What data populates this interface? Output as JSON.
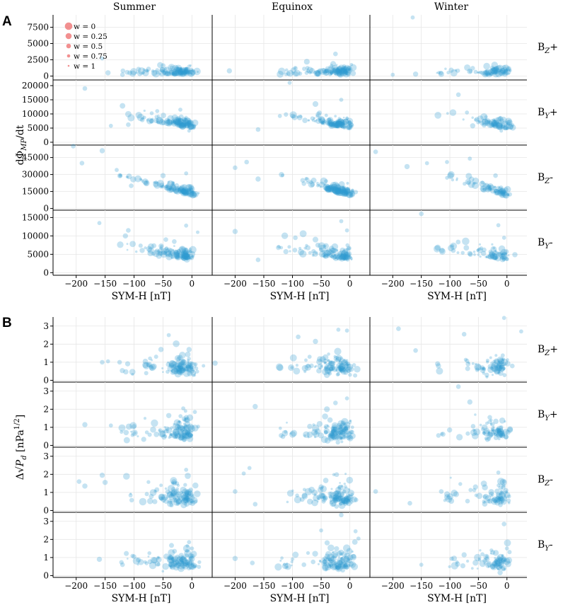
{
  "chart_data": {
    "type": "scatter",
    "marker": "bubble",
    "colors": {
      "points": "#2e9bd0",
      "legend": "#ee6b6b",
      "grid": "#e6e6e6",
      "axis": "#000000"
    },
    "columns": [
      "Summer",
      "Equinox",
      "Winter"
    ],
    "rows": [
      "Bz+",
      "By+",
      "Bz-",
      "By-"
    ],
    "row_label_parts": [
      {
        "base": "B",
        "sub": "Z",
        "suffix": "+"
      },
      {
        "base": "B",
        "sub": "Y",
        "suffix": "+"
      },
      {
        "base": "B",
        "sub": "Z",
        "suffix": "-"
      },
      {
        "base": "B",
        "sub": "Y",
        "suffix": "-"
      }
    ],
    "x_axis": {
      "label": "SYM-H [nT]",
      "ticks": [
        -200,
        -150,
        -100,
        -50,
        0
      ],
      "tick_labels": [
        "−200",
        "−150",
        "−100",
        "−50",
        "0"
      ],
      "range": [
        -240,
        35
      ]
    },
    "legend": {
      "title": "w",
      "entries": [
        {
          "label": "w = 0",
          "w": 0
        },
        {
          "label": "w = 0.25",
          "w": 0.25
        },
        {
          "label": "w = 0.5",
          "w": 0.5
        },
        {
          "label": "w = 0.75",
          "w": 0.75
        },
        {
          "label": "w = 1",
          "w": 1
        }
      ]
    },
    "panels": [
      {
        "id": "A",
        "letter": "A",
        "ylabel": "dΦ_MP/dt",
        "ylabel_parts": {
          "pre": "dΦ",
          "sub": "MP",
          "post": "/dt"
        },
        "rows": [
          {
            "ylim": [
              -600,
              9400
            ],
            "yticks": [
              0,
              2500,
              5000,
              7500
            ],
            "ytick_labels": [
              "0",
              "2500",
              "5000",
              "7500"
            ]
          },
          {
            "ylim": [
              -1000,
              22000
            ],
            "yticks": [
              0,
              5000,
              10000,
              15000,
              20000
            ],
            "ytick_labels": [
              "0",
              "5000",
              "10000",
              "15000",
              "20000"
            ]
          },
          {
            "ylim": [
              -1500,
              56000
            ],
            "yticks": [
              0,
              15000,
              30000,
              45000
            ],
            "ytick_labels": [
              "0",
              "15000",
              "30000",
              "45000"
            ]
          },
          {
            "ylim": [
              -700,
              17000
            ],
            "yticks": [
              0,
              5000,
              10000,
              15000
            ],
            "ytick_labels": [
              "0",
              "5000",
              "10000",
              "15000"
            ]
          }
        ],
        "highlight_points": [
          [
            [
              [
                -155,
                2700,
                0.6
              ],
              [
                -145,
                500,
                0.4
              ],
              [
                -120,
                200,
                0.5
              ],
              [
                -75,
                1100,
                0.5
              ],
              [
                -60,
                900,
                0.6
              ],
              [
                -35,
                1300,
                0.6
              ],
              [
                -5,
                1500,
                0.7
              ]
            ],
            [
              [
                -210,
                800,
                0.4
              ],
              [
                -95,
                1200,
                0.5
              ],
              [
                -75,
                2200,
                0.3
              ],
              [
                -25,
                3400,
                0.5
              ],
              [
                -10,
                1500,
                0.6
              ],
              [
                0,
                900,
                0.7
              ]
            ],
            [
              [
                -165,
                9000,
                0.6
              ],
              [
                -200,
                200,
                0.6
              ],
              [
                -160,
                300,
                0.4
              ],
              [
                -115,
                300,
                0.3
              ],
              [
                -60,
                1200,
                0.5
              ],
              [
                -5,
                1400,
                0.6
              ]
            ]
          ],
          [
            [
              [
                -185,
                19000,
                0.5
              ],
              [
                -140,
                5800,
                0.6
              ],
              [
                -110,
                6200,
                0.5
              ],
              [
                -60,
                11000,
                0.6
              ],
              [
                -20,
                11500,
                0.6
              ],
              [
                -5,
                4000,
                0.7
              ]
            ],
            [
              [
                -105,
                21000,
                0.6
              ],
              [
                -160,
                4500,
                0.5
              ],
              [
                -60,
                13500,
                0.3
              ],
              [
                -15,
                15000,
                0.6
              ],
              [
                -5,
                8500,
                0.7
              ]
            ],
            [
              [
                -85,
                16800,
                0.5
              ],
              [
                -70,
                10500,
                0.6
              ],
              [
                -40,
                6000,
                0.5
              ],
              [
                -60,
                5800,
                0.4
              ],
              [
                -10,
                4000,
                0.7
              ]
            ]
          ],
          [
            [
              [
                -205,
                55000,
                0.5
              ],
              [
                -190,
                40000,
                0.5
              ],
              [
                -155,
                51000,
                0.4
              ],
              [
                -130,
                34000,
                0.6
              ],
              [
                -105,
                20000,
                0.5
              ],
              [
                -50,
                29000,
                0.4
              ],
              [
                -10,
                31000,
                0.6
              ]
            ],
            [
              [
                -200,
                36000,
                0.5
              ],
              [
                -180,
                41000,
                0.5
              ],
              [
                -160,
                26000,
                0.4
              ],
              [
                -80,
                22000,
                0.5
              ],
              [
                -40,
                18000,
                0.4
              ],
              [
                -10,
                15000,
                0.6
              ]
            ],
            [
              [
                -230,
                50000,
                0.5
              ],
              [
                -175,
                37000,
                0.4
              ],
              [
                -140,
                40000,
                0.6
              ],
              [
                -105,
                41000,
                0.6
              ],
              [
                -65,
                44000,
                0.6
              ],
              [
                -20,
                29000,
                0.5
              ]
            ]
          ],
          [
            [
              [
                -160,
                13500,
                0.6
              ],
              [
                -110,
                11500,
                0.5
              ],
              [
                -115,
                10000,
                0.4
              ],
              [
                -45,
                9000,
                0.5
              ],
              [
                -10,
                12800,
                0.6
              ],
              [
                10,
                11000,
                0.7
              ]
            ],
            [
              [
                -200,
                11200,
                0.4
              ],
              [
                -160,
                3500,
                0.5
              ],
              [
                -95,
                9500,
                0.5
              ],
              [
                -60,
                9000,
                0.3
              ],
              [
                -15,
                14000,
                0.6
              ],
              [
                -5,
                11500,
                0.6
              ]
            ],
            [
              [
                -150,
                16000,
                0.5
              ],
              [
                -65,
                5200,
                0.4
              ],
              [
                -40,
                6200,
                0.5
              ],
              [
                -15,
                12900,
                0.6
              ],
              [
                -5,
                9500,
                0.6
              ]
            ]
          ]
        ]
      },
      {
        "id": "B",
        "letter": "B",
        "ylabel": "Δ√P_d [nPa^1/2]",
        "ylabel_parts": {
          "pre": "Δ√",
          "var": "P",
          "sub": "d",
          "unit": "[nPa",
          "sup": "1/2",
          "close": "]"
        },
        "rows": [
          {
            "ylim": [
              -0.1,
              3.5
            ],
            "yticks": [
              0,
              1,
              2,
              3
            ],
            "ytick_labels": [
              "0",
              "1",
              "2",
              "3"
            ]
          },
          {
            "ylim": [
              -0.1,
              3.5
            ],
            "yticks": [
              0,
              1,
              2,
              3
            ],
            "ytick_labels": [
              "0",
              "1",
              "2",
              "3"
            ]
          },
          {
            "ylim": [
              -0.1,
              3.5
            ],
            "yticks": [
              0,
              1,
              2,
              3
            ],
            "ytick_labels": [
              "0",
              "1",
              "2",
              "3"
            ]
          },
          {
            "ylim": [
              -0.1,
              3.5
            ],
            "yticks": [
              0,
              1,
              2,
              3
            ],
            "ytick_labels": [
              "0",
              "1",
              "2",
              "3"
            ]
          }
        ],
        "highlight_points": [
          [
            [
              [
                -155,
                1.0,
                0.5
              ],
              [
                -145,
                1.05,
                0.6
              ],
              [
                -125,
                1.0,
                0.5
              ],
              [
                -40,
                2.5,
                0.6
              ],
              [
                -5,
                1.7,
                0.4
              ],
              [
                -75,
                0.85,
                0.5
              ],
              [
                20,
                0.8,
                0.7
              ]
            ],
            [
              [
                -235,
                0.95,
                0.4
              ],
              [
                -90,
                2.4,
                0.5
              ],
              [
                -60,
                2.15,
                0.4
              ],
              [
                -20,
                2.8,
                0.6
              ],
              [
                -5,
                2.75,
                0.6
              ]
            ],
            [
              [
                -190,
                2.85,
                0.5
              ],
              [
                -160,
                1.65,
                0.5
              ],
              [
                -120,
                0.8,
                0.4
              ],
              [
                -75,
                2.55,
                0.5
              ],
              [
                -5,
                3.45,
                0.6
              ],
              [
                25,
                2.7,
                0.6
              ]
            ]
          ],
          [
            [
              [
                -185,
                1.15,
                0.4
              ],
              [
                -140,
                1.1,
                0.6
              ],
              [
                -100,
                1.05,
                0.5
              ],
              [
                -40,
                1.65,
                0.4
              ],
              [
                -15,
                2.05,
                0.6
              ],
              [
                5,
                1.85,
                0.6
              ]
            ],
            [
              [
                -165,
                2.15,
                0.4
              ],
              [
                -120,
                0.55,
                0.5
              ],
              [
                -70,
                1.05,
                0.4
              ],
              [
                -40,
                2.0,
                0.3
              ],
              [
                -25,
                2.35,
                0.5
              ],
              [
                -5,
                2.6,
                0.6
              ]
            ],
            [
              [
                -85,
                3.25,
                0.5
              ],
              [
                -65,
                2.4,
                0.4
              ],
              [
                -120,
                0.55,
                0.5
              ],
              [
                -30,
                1.55,
                0.5
              ],
              [
                -10,
                1.0,
                0.6
              ]
            ]
          ],
          [
            [
              [
                -195,
                1.6,
                0.5
              ],
              [
                -185,
                1.35,
                0.4
              ],
              [
                -155,
                1.95,
                0.4
              ],
              [
                -150,
                1.55,
                0.4
              ],
              [
                -10,
                2.25,
                0.6
              ],
              [
                -30,
                1.5,
                0.5
              ]
            ],
            [
              [
                -200,
                1.05,
                0.5
              ],
              [
                -185,
                2.05,
                0.6
              ],
              [
                -175,
                2.35,
                0.6
              ],
              [
                -165,
                0.35,
                0.5
              ],
              [
                -50,
                1.3,
                0.4
              ],
              [
                -10,
                1.05,
                0.6
              ]
            ],
            [
              [
                -230,
                1.05,
                0.5
              ],
              [
                -170,
                0.4,
                0.5
              ],
              [
                -115,
                1.05,
                0.5
              ],
              [
                -55,
                1.3,
                0.4
              ],
              [
                -15,
                2.1,
                0.6
              ],
              [
                -5,
                1.6,
                0.6
              ]
            ]
          ],
          [
            [
              [
                -160,
                0.9,
                0.4
              ],
              [
                -120,
                0.6,
                0.5
              ],
              [
                -100,
                1.05,
                0.5
              ],
              [
                -30,
                1.35,
                0.5
              ],
              [
                -5,
                1.85,
                0.6
              ],
              [
                0,
                1.5,
                0.6
              ]
            ],
            [
              [
                -200,
                0.95,
                0.4
              ],
              [
                -170,
                0.7,
                0.5
              ],
              [
                -80,
                0.6,
                0.5
              ],
              [
                -50,
                2.5,
                0.6
              ],
              [
                -15,
                3.35,
                0.5
              ],
              [
                10,
                2.45,
                0.6
              ],
              [
                15,
                2.05,
                0.6
              ]
            ],
            [
              [
                -150,
                0.6,
                0.6
              ],
              [
                -75,
                1.15,
                0.4
              ],
              [
                -35,
                0.9,
                0.4
              ],
              [
                -5,
                2.85,
                0.5
              ],
              [
                0,
                1.5,
                0.6
              ]
            ]
          ]
        ]
      }
    ]
  }
}
